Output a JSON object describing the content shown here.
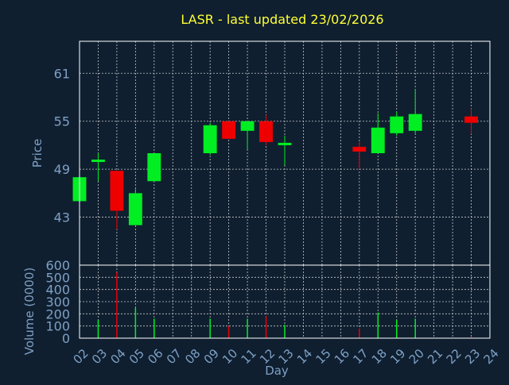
{
  "title": "LASR - last updated 23/02/2026",
  "colors": {
    "background": "#0f1f30",
    "title": "#ffff33",
    "axis_text": "#7fa0c4",
    "frame": "#ffffff",
    "grid": "#c8c8c8",
    "up": "#00ee22",
    "down": "#ee0000"
  },
  "chart_data": [
    {
      "type": "candlestick",
      "title": "LASR - last updated 23/02/2026",
      "ylabel": "Price",
      "ylim": [
        37,
        65
      ],
      "yticks": [
        43,
        49,
        55,
        61
      ],
      "grid": true,
      "x_positions": [
        "02",
        "03",
        "04",
        "05",
        "06",
        "07",
        "08",
        "09",
        "10",
        "11",
        "12",
        "13",
        "14",
        "15",
        "16",
        "17",
        "18",
        "19",
        "20",
        "21",
        "22",
        "23",
        "24"
      ],
      "candles": [
        {
          "day": "02",
          "open": 45.0,
          "close": 48.0,
          "high": 48.0,
          "low": 45.0
        },
        {
          "day": "03",
          "open": 50.0,
          "close": 50.2,
          "high": 51.0,
          "low": 47.5
        },
        {
          "day": "04",
          "open": 48.8,
          "close": 43.8,
          "high": 48.8,
          "low": 41.5
        },
        {
          "day": "05",
          "open": 42.0,
          "close": 46.0,
          "high": 46.5,
          "low": 42.0
        },
        {
          "day": "06",
          "open": 47.5,
          "close": 51.0,
          "high": 51.0,
          "low": 47.5
        },
        {
          "day": "09",
          "open": 51.0,
          "close": 54.5,
          "high": 54.8,
          "low": 50.8
        },
        {
          "day": "10",
          "open": 55.0,
          "close": 52.8,
          "high": 55.0,
          "low": 52.8
        },
        {
          "day": "11",
          "open": 53.8,
          "close": 55.0,
          "high": 55.0,
          "low": 51.5
        },
        {
          "day": "12",
          "open": 55.0,
          "close": 52.4,
          "high": 55.8,
          "low": 52.0
        },
        {
          "day": "13",
          "open": 52.0,
          "close": 52.3,
          "high": 53.2,
          "low": 49.5
        },
        {
          "day": "17",
          "open": 51.8,
          "close": 51.2,
          "high": 52.4,
          "low": 49.0
        },
        {
          "day": "18",
          "open": 51.0,
          "close": 54.2,
          "high": 56.0,
          "low": 51.0
        },
        {
          "day": "19",
          "open": 53.5,
          "close": 55.6,
          "high": 56.2,
          "low": 53.2
        },
        {
          "day": "20",
          "open": 53.8,
          "close": 55.9,
          "high": 59.0,
          "low": 53.5
        },
        {
          "day": "23",
          "open": 55.6,
          "close": 54.8,
          "high": 56.6,
          "low": 53.4
        }
      ]
    },
    {
      "type": "bar",
      "ylabel": "Volume (0000)",
      "xlabel": "Day",
      "ylim": [
        0,
        600
      ],
      "yticks": [
        0,
        100,
        200,
        300,
        400,
        500,
        600
      ],
      "grid": true,
      "x_positions": [
        "02",
        "03",
        "04",
        "05",
        "06",
        "07",
        "08",
        "09",
        "10",
        "11",
        "12",
        "13",
        "14",
        "15",
        "16",
        "17",
        "18",
        "19",
        "20",
        "21",
        "22",
        "23",
        "24"
      ],
      "bars": [
        {
          "day": "03",
          "value": 150,
          "color": "up"
        },
        {
          "day": "04",
          "value": 540,
          "color": "down"
        },
        {
          "day": "05",
          "value": 250,
          "color": "up"
        },
        {
          "day": "06",
          "value": 160,
          "color": "up"
        },
        {
          "day": "09",
          "value": 160,
          "color": "up"
        },
        {
          "day": "10",
          "value": 100,
          "color": "down"
        },
        {
          "day": "11",
          "value": 160,
          "color": "up"
        },
        {
          "day": "12",
          "value": 180,
          "color": "down"
        },
        {
          "day": "13",
          "value": 110,
          "color": "up"
        },
        {
          "day": "17",
          "value": 80,
          "color": "down"
        },
        {
          "day": "18",
          "value": 210,
          "color": "up"
        },
        {
          "day": "19",
          "value": 150,
          "color": "up"
        },
        {
          "day": "20",
          "value": 160,
          "color": "up"
        },
        {
          "day": "23",
          "value": 10,
          "color": "down"
        }
      ]
    }
  ]
}
